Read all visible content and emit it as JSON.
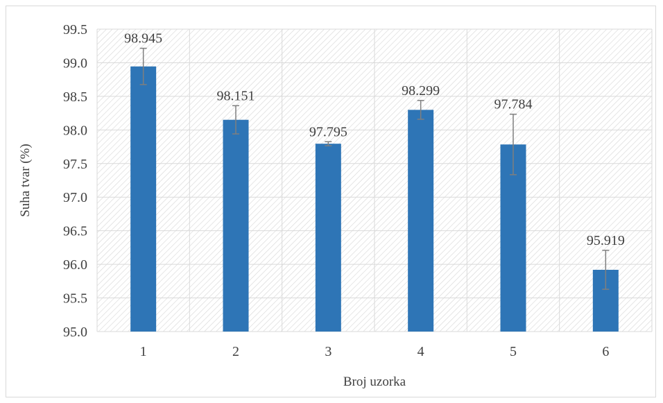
{
  "chart_data": {
    "type": "bar",
    "title": "",
    "xlabel": "Broj uzorka",
    "ylabel": "Suha tvar (%)",
    "categories": [
      "1",
      "2",
      "3",
      "4",
      "5",
      "6"
    ],
    "values": [
      98.945,
      98.151,
      97.795,
      98.299,
      97.784,
      95.919
    ],
    "data_labels": [
      "98.945",
      "98.151",
      "97.795",
      "98.299",
      "97.784",
      "95.919"
    ],
    "error_bars": [
      0.27,
      0.21,
      0.03,
      0.14,
      0.45,
      0.29
    ],
    "ylim": [
      95.0,
      99.5
    ],
    "y_ticks": [
      95.0,
      95.5,
      96.0,
      96.5,
      97.0,
      97.5,
      98.0,
      98.5,
      99.0,
      99.5
    ],
    "y_tick_labels": [
      "95.0",
      "95.5",
      "96.0",
      "96.5",
      "97.0",
      "97.5",
      "98.0",
      "98.5",
      "99.0",
      "99.5"
    ],
    "grid": true,
    "plot_background": "diagonal-hatch",
    "colors": {
      "bar": "#2e75b6",
      "error_bar": "#7f7f7f",
      "grid": "#d9d9d9",
      "text": "#404040"
    }
  }
}
